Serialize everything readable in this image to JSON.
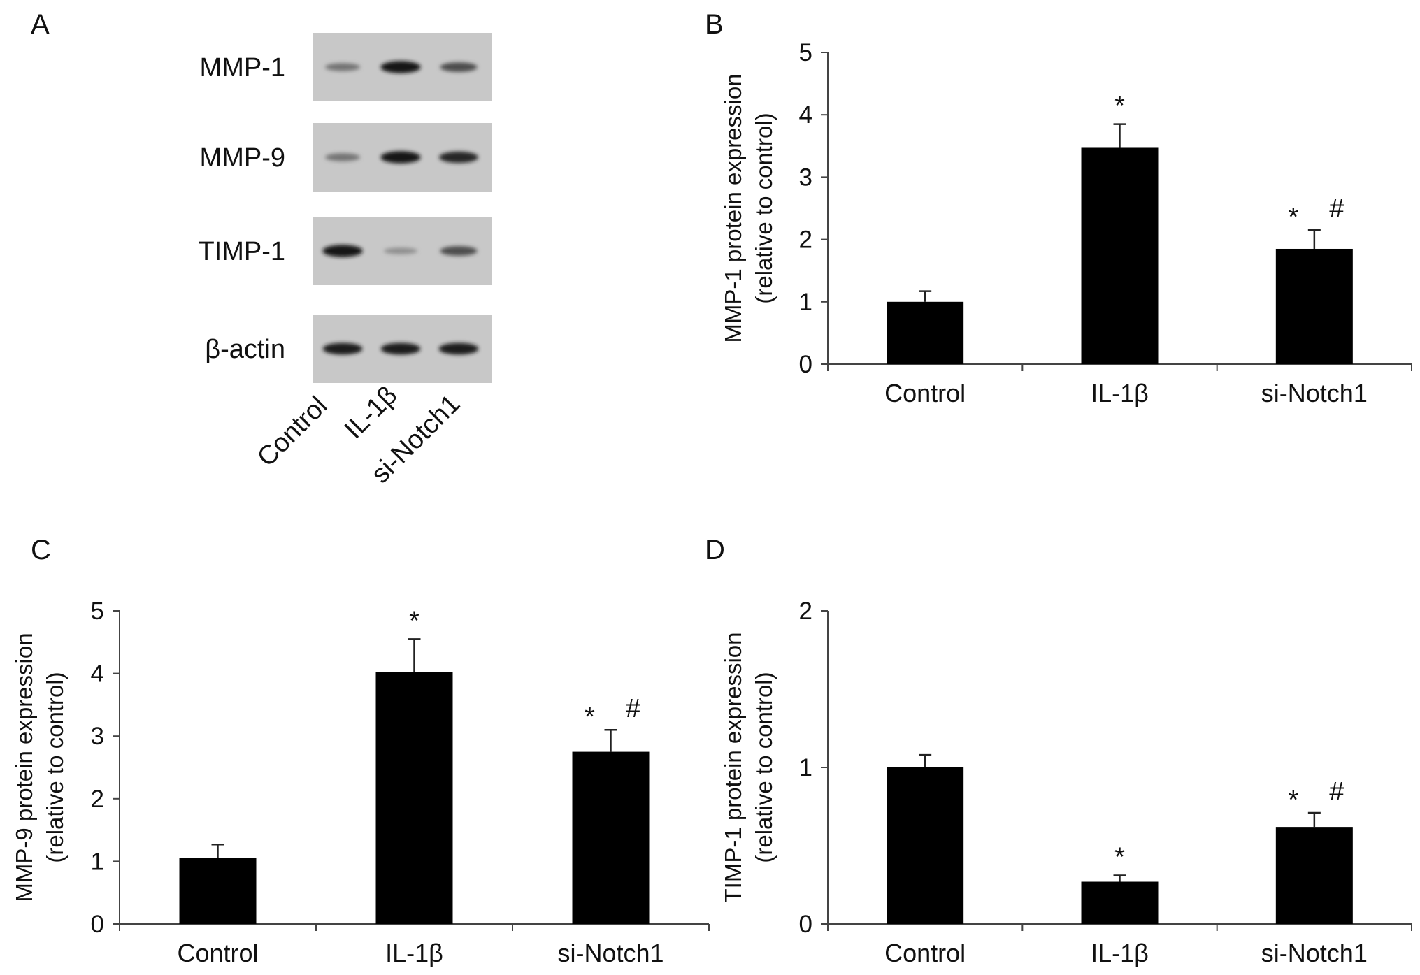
{
  "western_blot": {
    "panel_letter": "A",
    "rows": [
      {
        "label": "MMP-1",
        "band_intensity": [
          0.45,
          0.95,
          0.65
        ]
      },
      {
        "label": "MMP-9",
        "band_intensity": [
          0.45,
          0.95,
          0.85
        ]
      },
      {
        "label": "TIMP-1",
        "band_intensity": [
          0.95,
          0.3,
          0.65
        ]
      },
      {
        "label": "β-actin",
        "band_intensity": [
          0.9,
          0.9,
          0.9
        ]
      }
    ],
    "lanes": [
      "Control",
      "IL-1β",
      "si-Notch1"
    ]
  },
  "chart_data": [
    {
      "panel": "B",
      "type": "bar",
      "categories": [
        "Control",
        "IL-1β",
        "si-Notch1"
      ],
      "values": [
        1.0,
        3.47,
        1.85
      ],
      "errors": [
        0.17,
        0.38,
        0.3
      ],
      "ylabel": [
        "MMP-1 protein expression",
        "(relative to control)"
      ],
      "ylim": [
        0,
        5
      ],
      "yticks": [
        0,
        1,
        2,
        3,
        4,
        5
      ],
      "annotations": [
        [],
        [
          "*"
        ],
        [
          "*",
          "#"
        ]
      ]
    },
    {
      "panel": "C",
      "type": "bar",
      "categories": [
        "Control",
        "IL-1β",
        "si-Notch1"
      ],
      "values": [
        1.05,
        4.02,
        2.75
      ],
      "errors": [
        0.22,
        0.53,
        0.35
      ],
      "ylabel": [
        "MMP-9 protein expression",
        "(relative to control)"
      ],
      "ylim": [
        0,
        5
      ],
      "yticks": [
        0,
        1,
        2,
        3,
        4,
        5
      ],
      "annotations": [
        [],
        [
          "*"
        ],
        [
          "*",
          "#"
        ]
      ]
    },
    {
      "panel": "D",
      "type": "bar",
      "categories": [
        "Control",
        "IL-1β",
        "si-Notch1"
      ],
      "values": [
        1.0,
        0.27,
        0.62
      ],
      "errors": [
        0.08,
        0.04,
        0.09
      ],
      "ylabel": [
        "TIMP-1 protein expression",
        "(relative to control)"
      ],
      "ylim": [
        0,
        2
      ],
      "yticks": [
        0,
        1,
        2
      ],
      "annotations": [
        [],
        [
          "*"
        ],
        [
          "*",
          "#"
        ]
      ]
    }
  ]
}
